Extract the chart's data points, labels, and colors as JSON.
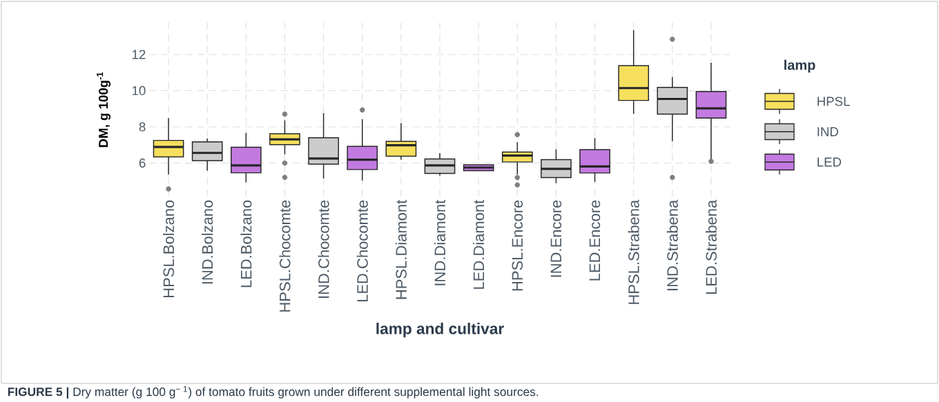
{
  "chart_data": {
    "type": "box",
    "xlabel": "lamp and cultivar",
    "ylabel": "DM, g 100g$^{-1}$",
    "legend_title": "lamp",
    "legend": "right",
    "grid": true,
    "marker": "circle",
    "ylim": [
      4.15,
      13.75
    ],
    "yticks": [
      6,
      8,
      10,
      12
    ],
    "categories": [
      "HPSL.Bolzano",
      "IND.Bolzano",
      "LED.Bolzano",
      "HPSL.Chocomte",
      "IND.Chocomte",
      "LED.Chocomte",
      "HPSL.Diamont",
      "IND.Diamont",
      "LED.Diamont",
      "HPSL.Encore",
      "IND.Encore",
      "LED.Encore",
      "HPSL.Strabena",
      "IND.Strabena",
      "LED.Strabena"
    ],
    "series": [
      {
        "name": "HPSL",
        "color": "#f7df5e",
        "boxes": [
          {
            "low": 5.36,
            "q1": 6.34,
            "median": 6.89,
            "q3": 7.25,
            "high": 8.48,
            "outliers": [
              4.57
            ]
          },
          null,
          null,
          {
            "low": 6.48,
            "q1": 7.02,
            "median": 7.31,
            "q3": 7.62,
            "high": 8.36,
            "outliers": [
              8.7,
              6.0,
              5.21
            ]
          },
          null,
          null,
          {
            "low": 6.19,
            "q1": 6.38,
            "median": 6.98,
            "q3": 7.2,
            "high": 8.2
          },
          null,
          null,
          {
            "low": 5.36,
            "q1": 6.06,
            "median": 6.41,
            "q3": 6.61,
            "high": 7.15,
            "outliers": [
              7.57,
              5.2,
              4.79
            ]
          },
          null,
          null,
          {
            "low": 8.71,
            "q1": 9.46,
            "median": 10.14,
            "q3": 11.38,
            "high": 13.35
          },
          null,
          null
        ]
      },
      {
        "name": "IND",
        "color": "#cccccc",
        "boxes": [
          null,
          {
            "low": 5.58,
            "q1": 6.13,
            "median": 6.56,
            "q3": 7.17,
            "high": 7.36
          },
          null,
          null,
          {
            "low": 5.15,
            "q1": 5.94,
            "median": 6.25,
            "q3": 7.4,
            "high": 8.76
          },
          null,
          null,
          {
            "low": 5.3,
            "q1": 5.43,
            "median": 5.87,
            "q3": 6.23,
            "high": 6.55
          },
          null,
          null,
          {
            "low": 4.89,
            "q1": 5.2,
            "median": 5.68,
            "q3": 6.19,
            "high": 6.76
          },
          null,
          null,
          {
            "low": 7.21,
            "q1": 8.7,
            "median": 9.54,
            "q3": 10.18,
            "high": 10.75,
            "outliers": [
              12.84,
              5.21
            ]
          },
          null
        ]
      },
      {
        "name": "LED",
        "color": "#c27ae0",
        "boxes": [
          null,
          null,
          {
            "low": 4.94,
            "q1": 5.46,
            "median": 5.87,
            "q3": 6.87,
            "high": 7.66
          },
          null,
          null,
          {
            "low": 5.04,
            "q1": 5.64,
            "median": 6.18,
            "q3": 6.92,
            "high": 8.42,
            "outliers": [
              8.93
            ]
          },
          null,
          null,
          {
            "low": 5.58,
            "q1": 5.58,
            "median": 5.75,
            "q3": 5.9,
            "high": 5.9
          },
          null,
          null,
          {
            "low": 4.96,
            "q1": 5.45,
            "median": 5.81,
            "q3": 6.74,
            "high": 7.38
          },
          null,
          null,
          {
            "low": 6.12,
            "q1": 8.48,
            "median": 9.02,
            "q3": 9.95,
            "high": 11.54,
            "outliers": [
              6.09
            ]
          }
        ]
      }
    ],
    "annotations": [
      "**FIGURE 5 |** Dry matter (g 100 g$^{− 1}$) of tomato fruits grown under different supplemental light sources."
    ]
  }
}
